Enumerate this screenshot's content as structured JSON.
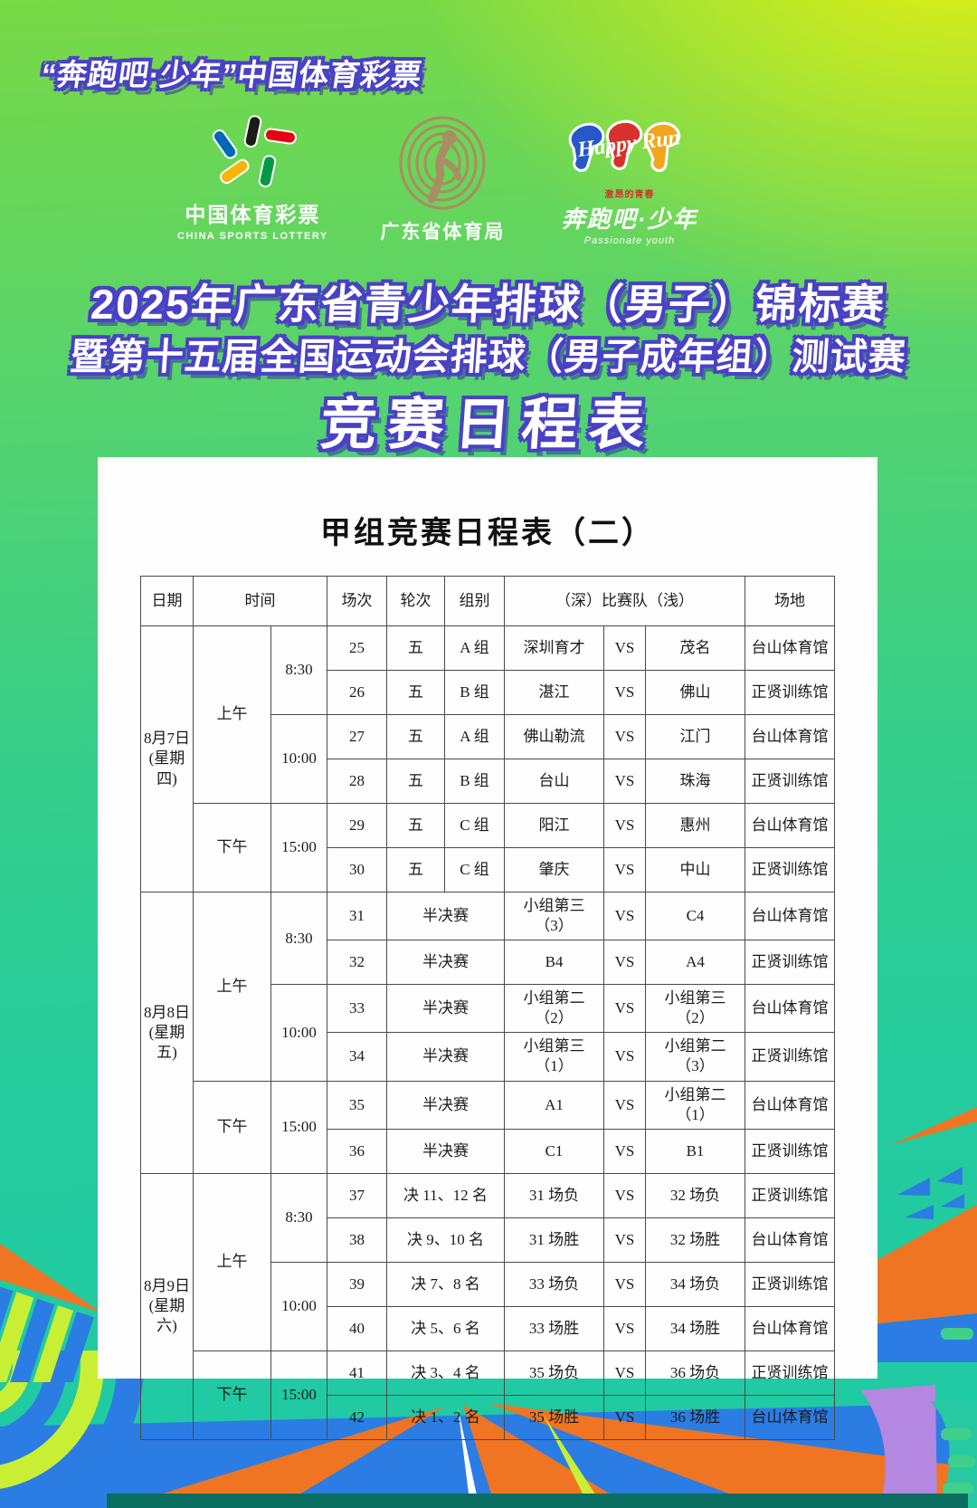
{
  "page": {
    "brand_line": "“奔跑吧·少年”中国体育彩票",
    "title_line1": "2025年广东省青少年排球（男子）锦标赛",
    "title_line2": "暨第十五届全国运动会排球（男子成年组）测试赛",
    "title_line3": "竞赛日程表"
  },
  "logos": {
    "lottery": {
      "name_cn": "中国体育彩票",
      "name_en": "CHINA SPORTS LOTTERY"
    },
    "bureau": {
      "name_cn": "广东省体育局"
    },
    "happy_run": {
      "script": "Happy Run",
      "tagline": "激昂的青春",
      "name_cn": "奔跑吧·少年",
      "sub": "Passionate youth"
    }
  },
  "colors": {
    "outline_purple": "#4a41c6",
    "teal": "#1fc9a4",
    "deco_blue": "#2b7de4",
    "deco_orange": "#ef7522",
    "deco_lime": "#c9ef35",
    "deco_purple": "#b487e0",
    "deco_green": "#3fd08c",
    "bureau_tan": "#a98e63"
  },
  "card": {
    "table_title": "甲组竞赛日程表（二）",
    "headers": {
      "date": "日期",
      "time": "时间",
      "match_no": "场次",
      "round": "轮次",
      "group": "组别",
      "teams": "（深）比赛队（浅）",
      "venue": "场地"
    },
    "vs": "VS",
    "days": [
      {
        "date": "8月7日",
        "weekday": "(星期四)",
        "sessions": [
          {
            "label": "上午",
            "slots": [
              {
                "time": "8:30",
                "matches": [
                  {
                    "no": "25",
                    "round": "五",
                    "group": "A 组",
                    "team1": "深圳育才",
                    "team2": "茂名",
                    "venue": "台山体育馆"
                  },
                  {
                    "no": "26",
                    "round": "五",
                    "group": "B 组",
                    "team1": "湛江",
                    "team2": "佛山",
                    "venue": "正贤训练馆"
                  }
                ]
              },
              {
                "time": "10:00",
                "matches": [
                  {
                    "no": "27",
                    "round": "五",
                    "group": "A 组",
                    "team1": "佛山勒流",
                    "team2": "江门",
                    "venue": "台山体育馆"
                  },
                  {
                    "no": "28",
                    "round": "五",
                    "group": "B 组",
                    "team1": "台山",
                    "team2": "珠海",
                    "venue": "正贤训练馆"
                  }
                ]
              }
            ]
          },
          {
            "label": "下午",
            "slots": [
              {
                "time": "15:00",
                "matches": [
                  {
                    "no": "29",
                    "round": "五",
                    "group": "C 组",
                    "team1": "阳江",
                    "team2": "惠州",
                    "venue": "台山体育馆"
                  },
                  {
                    "no": "30",
                    "round": "五",
                    "group": "C 组",
                    "team1": "肇庆",
                    "team2": "中山",
                    "venue": "正贤训练馆"
                  }
                ]
              }
            ]
          }
        ]
      },
      {
        "date": "8月8日",
        "weekday": "(星期五)",
        "sessions": [
          {
            "label": "上午",
            "slots": [
              {
                "time": "8:30",
                "matches": [
                  {
                    "no": "31",
                    "round": "半决赛",
                    "group": null,
                    "team1": "小组第三\n（3）",
                    "team2": "C4",
                    "venue": "台山体育馆"
                  },
                  {
                    "no": "32",
                    "round": "半决赛",
                    "group": null,
                    "team1": "B4",
                    "team2": "A4",
                    "venue": "正贤训练馆"
                  }
                ]
              },
              {
                "time": "10:00",
                "matches": [
                  {
                    "no": "33",
                    "round": "半决赛",
                    "group": null,
                    "team1": "小组第二\n（2）",
                    "team2": "小组第三\n（2）",
                    "venue": "台山体育馆"
                  },
                  {
                    "no": "34",
                    "round": "半决赛",
                    "group": null,
                    "team1": "小组第三\n（1）",
                    "team2": "小组第二\n（3）",
                    "venue": "正贤训练馆"
                  }
                ]
              }
            ]
          },
          {
            "label": "下午",
            "slots": [
              {
                "time": "15:00",
                "matches": [
                  {
                    "no": "35",
                    "round": "半决赛",
                    "group": null,
                    "team1": "A1",
                    "team2": "小组第二\n（1）",
                    "venue": "台山体育馆"
                  },
                  {
                    "no": "36",
                    "round": "半决赛",
                    "group": null,
                    "team1": "C1",
                    "team2": "B1",
                    "venue": "正贤训练馆"
                  }
                ]
              }
            ]
          }
        ]
      },
      {
        "date": "8月9日",
        "weekday": "(星期六)",
        "sessions": [
          {
            "label": "上午",
            "slots": [
              {
                "time": "8:30",
                "matches": [
                  {
                    "no": "37",
                    "round": "决 11、12 名",
                    "group": null,
                    "team1": "31 场负",
                    "team2": "32 场负",
                    "venue": "正贤训练馆"
                  },
                  {
                    "no": "38",
                    "round": "决 9、10 名",
                    "group": null,
                    "team1": "31 场胜",
                    "team2": "32 场胜",
                    "venue": "台山体育馆"
                  }
                ]
              },
              {
                "time": "10:00",
                "matches": [
                  {
                    "no": "39",
                    "round": "决 7、8 名",
                    "group": null,
                    "team1": "33 场负",
                    "team2": "34 场负",
                    "venue": "正贤训练馆"
                  },
                  {
                    "no": "40",
                    "round": "决 5、6 名",
                    "group": null,
                    "team1": "33 场胜",
                    "team2": "34 场胜",
                    "venue": "台山体育馆"
                  }
                ]
              }
            ]
          },
          {
            "label": "下午",
            "slots": [
              {
                "time": "15:00",
                "matches": [
                  {
                    "no": "41",
                    "round": "决 3、4 名",
                    "group": null,
                    "team1": "35 场负",
                    "team2": "36 场负",
                    "venue": "正贤训练馆"
                  },
                  {
                    "no": "42",
                    "round": "决 1、2 名",
                    "group": null,
                    "team1": "35 场胜",
                    "team2": "36 场胜",
                    "venue": "台山体育馆"
                  }
                ]
              }
            ]
          }
        ]
      }
    ]
  }
}
